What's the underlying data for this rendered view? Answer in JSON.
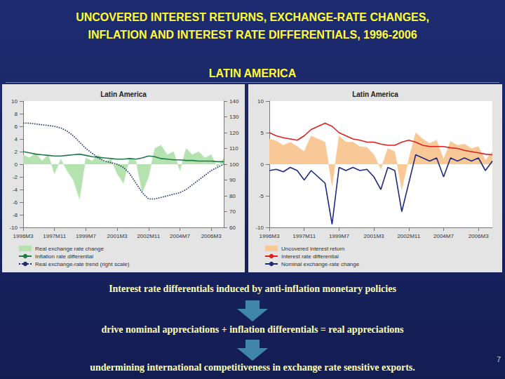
{
  "slide": {
    "title": [
      "UNCOVERED INTEREST RETURNS, EXCHANGE-RATE CHANGES,",
      "INFLATION AND INTEREST RATE DIFFERENTIALS, 1996-2006"
    ],
    "subtitle": "LATIN AMERICA",
    "captions": [
      "Interest rate differentials induced by anti-inflation monetary policies",
      "drive nominal appreciations + inflation differentials = real appreciations",
      "undermining international competitiveness in exchange rate sensitive exports."
    ],
    "page": 7
  },
  "chart_data": [
    {
      "type": "line",
      "title": "Latin America",
      "categories": [
        "1996M3",
        null,
        null,
        null,
        null,
        "1997M11",
        null,
        null,
        null,
        null,
        "1999M7",
        null,
        null,
        null,
        null,
        "2001M3",
        null,
        null,
        null,
        null,
        "2002M11",
        null,
        null,
        null,
        null,
        "2004M7",
        null,
        null,
        null,
        null,
        "2006M3",
        null,
        null
      ],
      "series": [
        {
          "name": "Real exchange rate change",
          "type": "area",
          "color": "#b5e3b0",
          "values": [
            1.5,
            1.0,
            1.8,
            0.5,
            1.5,
            -1.5,
            0.8,
            -1.0,
            -2.5,
            -5.5,
            1.0,
            0.5,
            1.5,
            0.3,
            0.8,
            -1.5,
            -3.0,
            1.0,
            0.5,
            -4.5,
            -2.0,
            2.5,
            3.0,
            1.5,
            2.0,
            -1.0,
            2.5,
            1.5,
            2.0,
            1.0,
            1.5,
            -0.5,
            1.0
          ]
        },
        {
          "name": "Inflation rate differential",
          "type": "line",
          "color": "#1f7a4a",
          "values": [
            2.0,
            1.8,
            1.6,
            1.5,
            1.4,
            1.3,
            1.3,
            1.4,
            1.5,
            1.6,
            1.4,
            1.2,
            1.1,
            1.0,
            0.9,
            0.8,
            0.8,
            0.9,
            0.8,
            1.0,
            1.3,
            1.2,
            0.9,
            0.8,
            0.7,
            0.7,
            0.6,
            0.6,
            0.5,
            0.5,
            0.5,
            0.4,
            0.4
          ]
        },
        {
          "name": "Real exchange-rate trend (right scale)",
          "type": "line",
          "color": "#1f2f6e",
          "line_style": "dotted",
          "axis": "y2",
          "values": [
            126,
            126,
            125.5,
            125,
            124.5,
            124,
            123,
            121,
            118,
            114,
            110,
            107,
            104,
            102,
            101,
            100,
            98,
            94,
            88,
            82,
            78,
            78,
            79,
            80,
            81,
            82,
            84,
            87,
            90,
            93,
            96,
            98,
            100
          ]
        }
      ],
      "ylim": [
        -10,
        10
      ],
      "yticks": [
        -10,
        -8,
        -6,
        -4,
        -2,
        0,
        2,
        4,
        6,
        8,
        10
      ],
      "y2lim": [
        60,
        140
      ],
      "y2ticks": [
        60,
        70,
        80,
        90,
        100,
        110,
        120,
        130,
        140
      ],
      "grid": false,
      "legend": "bottom-left"
    },
    {
      "type": "line",
      "title": "Latin America",
      "categories": [
        "1996M3",
        null,
        null,
        null,
        null,
        "1997M11",
        null,
        null,
        null,
        null,
        "1999M7",
        null,
        null,
        null,
        null,
        "2001M3",
        null,
        null,
        null,
        null,
        "2002M11",
        null,
        null,
        null,
        null,
        "2004M7",
        null,
        null,
        null,
        null,
        "2006M3",
        null,
        null
      ],
      "series": [
        {
          "name": "Uncovered interest return",
          "type": "area",
          "color": "#f8c896",
          "values": [
            4.0,
            3.7,
            3.0,
            3.5,
            2.8,
            2.0,
            4.5,
            4.0,
            3.5,
            -3.5,
            4.5,
            3.5,
            3.5,
            2.8,
            2.7,
            1.5,
            -0.8,
            2.5,
            2.0,
            -4.0,
            0.8,
            5.0,
            4.0,
            3.3,
            3.8,
            0.8,
            3.6,
            3.0,
            3.2,
            2.5,
            2.8,
            0.6,
            2.0
          ]
        },
        {
          "name": "Interest rate differential",
          "type": "line",
          "color": "#e02020",
          "values": [
            5.0,
            4.5,
            4.2,
            4.0,
            3.8,
            4.5,
            5.5,
            6.0,
            6.5,
            6.0,
            5.0,
            4.5,
            4.0,
            3.8,
            3.5,
            3.5,
            3.2,
            3.0,
            3.0,
            3.5,
            3.8,
            3.5,
            3.0,
            2.8,
            2.8,
            2.8,
            2.6,
            2.5,
            2.2,
            2.0,
            1.8,
            1.6,
            1.5
          ]
        },
        {
          "name": "Nominal exchange-rate change",
          "type": "line",
          "color": "#1f2a80",
          "values": [
            -1.0,
            -0.8,
            -1.2,
            -0.5,
            -1.0,
            -2.5,
            -1.0,
            -2.0,
            -3.0,
            -9.5,
            -0.5,
            -1.0,
            -0.5,
            -1.0,
            -0.8,
            -2.0,
            -4.0,
            -0.5,
            -1.0,
            -7.5,
            -3.0,
            1.5,
            1.0,
            0.5,
            1.0,
            -2.0,
            1.0,
            0.5,
            1.0,
            0.5,
            1.0,
            -1.0,
            0.5
          ]
        }
      ],
      "ylim": [
        -10,
        10
      ],
      "yticks": [
        -10,
        -5,
        0,
        5,
        10
      ],
      "grid": false,
      "legend": "bottom-left"
    }
  ]
}
